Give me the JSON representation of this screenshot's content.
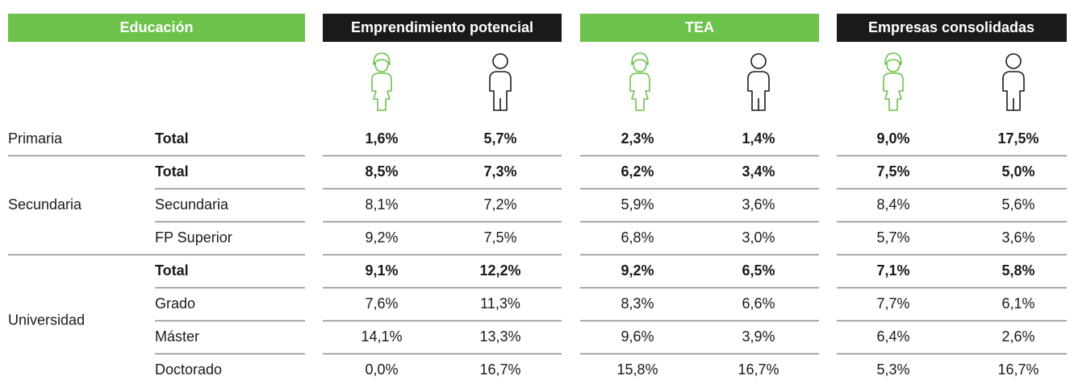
{
  "header": {
    "education": "Educación",
    "columns": [
      "Emprendimiento potencial",
      "TEA",
      "Empresas consolidadas"
    ]
  },
  "groups": [
    {
      "label": "Primaria",
      "rows": [
        {
          "label": "Total",
          "values": [
            "1,6%",
            "5,7%",
            "2,3%",
            "1,4%",
            "9,0%",
            "17,5%"
          ]
        }
      ]
    },
    {
      "label": "Secundaria",
      "rows": [
        {
          "label": "Total",
          "values": [
            "8,5%",
            "7,3%",
            "6,2%",
            "3,4%",
            "7,5%",
            "5,0%"
          ]
        },
        {
          "label": "Secundaria",
          "values": [
            "8,1%",
            "7,2%",
            "5,9%",
            "3,6%",
            "8,4%",
            "5,6%"
          ]
        },
        {
          "label": "FP Superior",
          "values": [
            "9,2%",
            "7,5%",
            "6,8%",
            "3,0%",
            "5,7%",
            "3,6%"
          ]
        }
      ]
    },
    {
      "label": "Universidad",
      "rows": [
        {
          "label": "Total",
          "values": [
            "9,1%",
            "12,2%",
            "9,2%",
            "6,5%",
            "7,1%",
            "5,8%"
          ]
        },
        {
          "label": "Grado",
          "values": [
            "7,6%",
            "11,3%",
            "8,3%",
            "6,6%",
            "7,7%",
            "6,1%"
          ]
        },
        {
          "label": "Máster",
          "values": [
            "14,1%",
            "13,3%",
            "9,6%",
            "3,9%",
            "6,4%",
            "2,6%"
          ]
        },
        {
          "label": "Doctorado",
          "values": [
            "0,0%",
            "16,7%",
            "15,8%",
            "16,7%",
            "5,3%",
            "16,7%"
          ]
        }
      ]
    }
  ]
}
